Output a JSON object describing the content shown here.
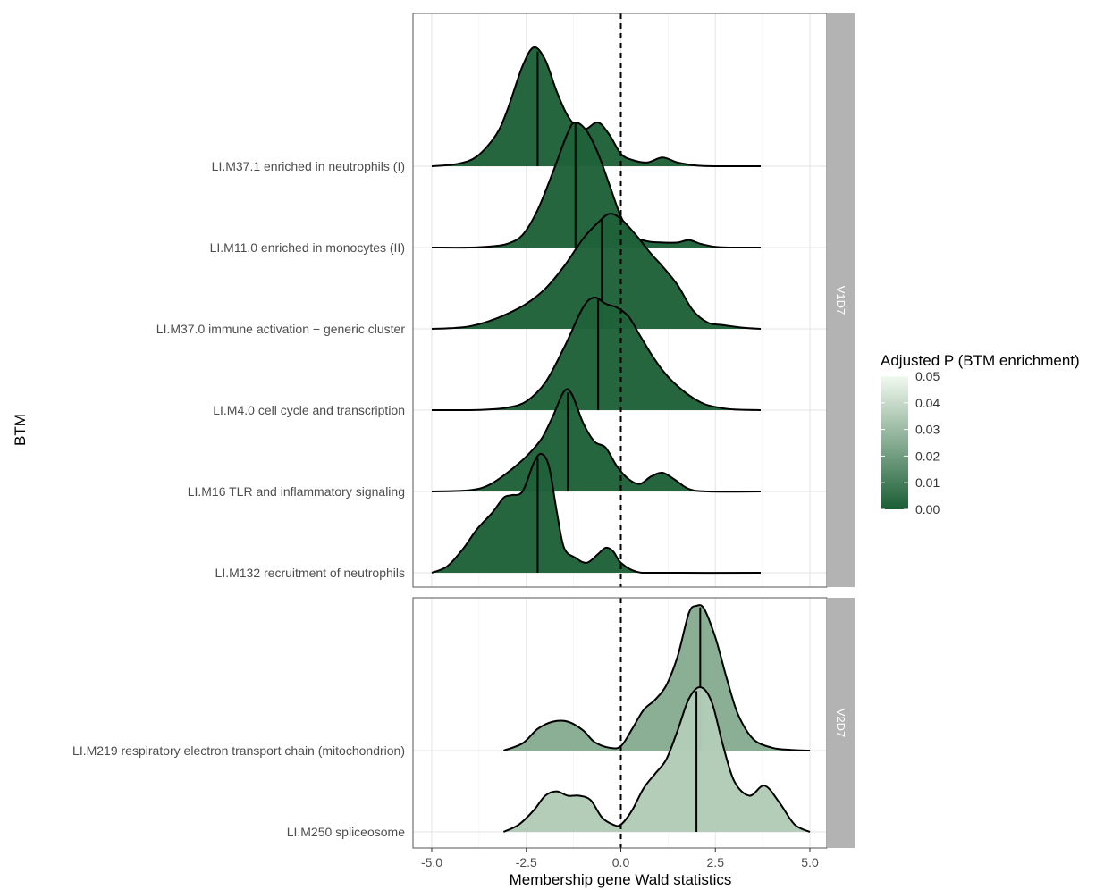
{
  "chart_data": {
    "type": "ridgeline",
    "xlabel": "Membership gene Wald statistics",
    "ylabel": "BTM",
    "xlim": [
      -5.0,
      5.0
    ],
    "x_ticks": [
      "-5.0",
      "-2.5",
      "0.0",
      "2.5",
      "5.0"
    ],
    "x_tick_values": [
      -5.0,
      -2.5,
      0.0,
      2.5,
      5.0
    ],
    "vline": {
      "x": 0.0,
      "style": "dashed"
    },
    "grid": true,
    "legend": {
      "title": "Adjusted P (BTM enrichment)",
      "placement": "right",
      "ticks": [
        "0.05",
        "0.04",
        "0.03",
        "0.02",
        "0.01",
        "0.00"
      ],
      "tick_values": [
        0.05,
        0.04,
        0.03,
        0.02,
        0.01,
        0.0
      ],
      "range": [
        0.0,
        0.05
      ],
      "color_low": "#1b5e35",
      "color_high": "#f2f9ef"
    },
    "panels": [
      {
        "strip": "V1D7",
        "ridges": [
          {
            "name": "LI.M37.1 enriched in neutrophils (I)",
            "adj_p": 0.001,
            "median": -2.2,
            "curve_x": [
              -5.0,
              -4.3,
              -3.8,
              -3.3,
              -3.0,
              -2.6,
              -2.3,
              -2.0,
              -1.7,
              -1.4,
              -1.1,
              -0.9,
              -0.6,
              -0.3,
              0.0,
              0.3,
              0.7,
              1.1,
              1.5,
              2.0,
              2.6,
              3.7
            ],
            "density": [
              0.0,
              0.02,
              0.08,
              0.25,
              0.45,
              0.8,
              0.95,
              0.85,
              0.6,
              0.4,
              0.3,
              0.3,
              0.35,
              0.25,
              0.1,
              0.05,
              0.03,
              0.07,
              0.03,
              0.005,
              0.0,
              0.0
            ]
          },
          {
            "name": "LI.M11.0 enriched in monocytes (II)",
            "adj_p": 0.001,
            "median": -1.2,
            "curve_x": [
              -5.0,
              -4.0,
              -3.4,
              -3.0,
              -2.6,
              -2.2,
              -1.8,
              -1.4,
              -1.2,
              -0.9,
              -0.6,
              -0.3,
              0.0,
              0.3,
              0.7,
              1.1,
              1.5,
              1.8,
              2.1,
              2.5,
              3.0,
              3.7
            ],
            "density": [
              0.0,
              0.0,
              0.01,
              0.03,
              0.1,
              0.3,
              0.6,
              0.92,
              1.0,
              0.93,
              0.75,
              0.5,
              0.25,
              0.1,
              0.05,
              0.04,
              0.04,
              0.06,
              0.03,
              0.005,
              0.0,
              0.0
            ]
          },
          {
            "name": "LI.M37.0 immune activation - generic cluster",
            "adj_p": 0.001,
            "median": -0.5,
            "curve_x": [
              -5.0,
              -4.5,
              -4.0,
              -3.5,
              -3.0,
              -2.5,
              -2.0,
              -1.5,
              -1.0,
              -0.6,
              -0.3,
              0.0,
              0.4,
              0.8,
              1.1,
              1.5,
              1.9,
              2.3,
              2.7,
              3.2,
              3.7
            ],
            "density": [
              0.0,
              0.005,
              0.02,
              0.06,
              0.12,
              0.2,
              0.32,
              0.5,
              0.72,
              0.85,
              0.92,
              0.88,
              0.75,
              0.6,
              0.5,
              0.35,
              0.15,
              0.05,
              0.03,
              0.01,
              0.0
            ]
          },
          {
            "name": "LI.M4.0 cell cycle and transcription",
            "adj_p": 0.001,
            "median": -0.6,
            "curve_x": [
              -5.0,
              -4.0,
              -3.5,
              -3.0,
              -2.5,
              -2.0,
              -1.5,
              -1.0,
              -0.7,
              -0.4,
              -0.1,
              0.2,
              0.5,
              0.8,
              1.1,
              1.4,
              1.8,
              2.2,
              2.6,
              3.0,
              3.7
            ],
            "density": [
              0.0,
              0.0,
              0.005,
              0.02,
              0.07,
              0.22,
              0.5,
              0.82,
              0.9,
              0.85,
              0.82,
              0.75,
              0.6,
              0.45,
              0.32,
              0.22,
              0.12,
              0.05,
              0.02,
              0.005,
              0.0
            ]
          },
          {
            "name": "LI.M16 TLR and inflammatory signaling",
            "adj_p": 0.001,
            "median": -1.4,
            "curve_x": [
              -5.0,
              -4.0,
              -3.5,
              -3.0,
              -2.5,
              -2.1,
              -1.8,
              -1.5,
              -1.3,
              -1.0,
              -0.7,
              -0.4,
              -0.1,
              0.2,
              0.5,
              0.8,
              1.1,
              1.4,
              1.8,
              2.3,
              3.7
            ],
            "density": [
              0.0,
              0.01,
              0.05,
              0.15,
              0.28,
              0.42,
              0.6,
              0.8,
              0.78,
              0.55,
              0.4,
              0.35,
              0.2,
              0.1,
              0.06,
              0.12,
              0.15,
              0.1,
              0.02,
              0.0,
              0.0
            ]
          },
          {
            "name": "LI.M132 recruitment of neutrophils",
            "adj_p": 0.001,
            "median": -2.2,
            "curve_x": [
              -5.0,
              -4.6,
              -4.2,
              -3.8,
              -3.4,
              -3.1,
              -2.9,
              -2.6,
              -2.3,
              -2.1,
              -1.9,
              -1.7,
              -1.5,
              -1.2,
              -0.9,
              -0.6,
              -0.4,
              -0.2,
              0.0,
              0.4,
              1.0,
              3.7
            ],
            "density": [
              0.0,
              0.05,
              0.18,
              0.35,
              0.48,
              0.6,
              0.62,
              0.65,
              0.88,
              0.95,
              0.85,
              0.5,
              0.2,
              0.12,
              0.08,
              0.15,
              0.2,
              0.17,
              0.08,
              0.01,
              0.0,
              0.0
            ]
          }
        ]
      },
      {
        "strip": "V2D7",
        "ridges": [
          {
            "name": "LI.M219 respiratory electron transport chain (mitochondrion)",
            "adj_p": 0.025,
            "median": 2.1,
            "curve_x": [
              -3.1,
              -2.6,
              -2.2,
              -1.8,
              -1.4,
              -1.0,
              -0.7,
              -0.3,
              0.0,
              0.3,
              0.6,
              0.9,
              1.2,
              1.5,
              1.8,
              2.0,
              2.2,
              2.5,
              2.8,
              3.1,
              3.5,
              4.0,
              4.5,
              5.0
            ],
            "density": [
              0.0,
              0.05,
              0.15,
              0.2,
              0.2,
              0.14,
              0.06,
              0.02,
              0.03,
              0.15,
              0.28,
              0.35,
              0.45,
              0.65,
              0.95,
              1.0,
              0.98,
              0.78,
              0.5,
              0.25,
              0.08,
              0.02,
              0.005,
              0.0
            ]
          },
          {
            "name": "LI.M250 spliceosome",
            "adj_p": 0.035,
            "median": 2.0,
            "curve_x": [
              -3.1,
              -2.7,
              -2.3,
              -2.0,
              -1.7,
              -1.4,
              -1.1,
              -0.8,
              -0.5,
              -0.2,
              0.0,
              0.3,
              0.6,
              0.9,
              1.2,
              1.5,
              1.8,
              2.1,
              2.4,
              2.7,
              3.0,
              3.4,
              3.8,
              4.2,
              4.6,
              5.0
            ],
            "density": [
              0.0,
              0.05,
              0.15,
              0.25,
              0.28,
              0.25,
              0.25,
              0.22,
              0.1,
              0.05,
              0.05,
              0.15,
              0.3,
              0.4,
              0.5,
              0.7,
              0.92,
              1.0,
              0.9,
              0.6,
              0.35,
              0.25,
              0.32,
              0.2,
              0.05,
              0.0
            ]
          }
        ]
      }
    ]
  }
}
